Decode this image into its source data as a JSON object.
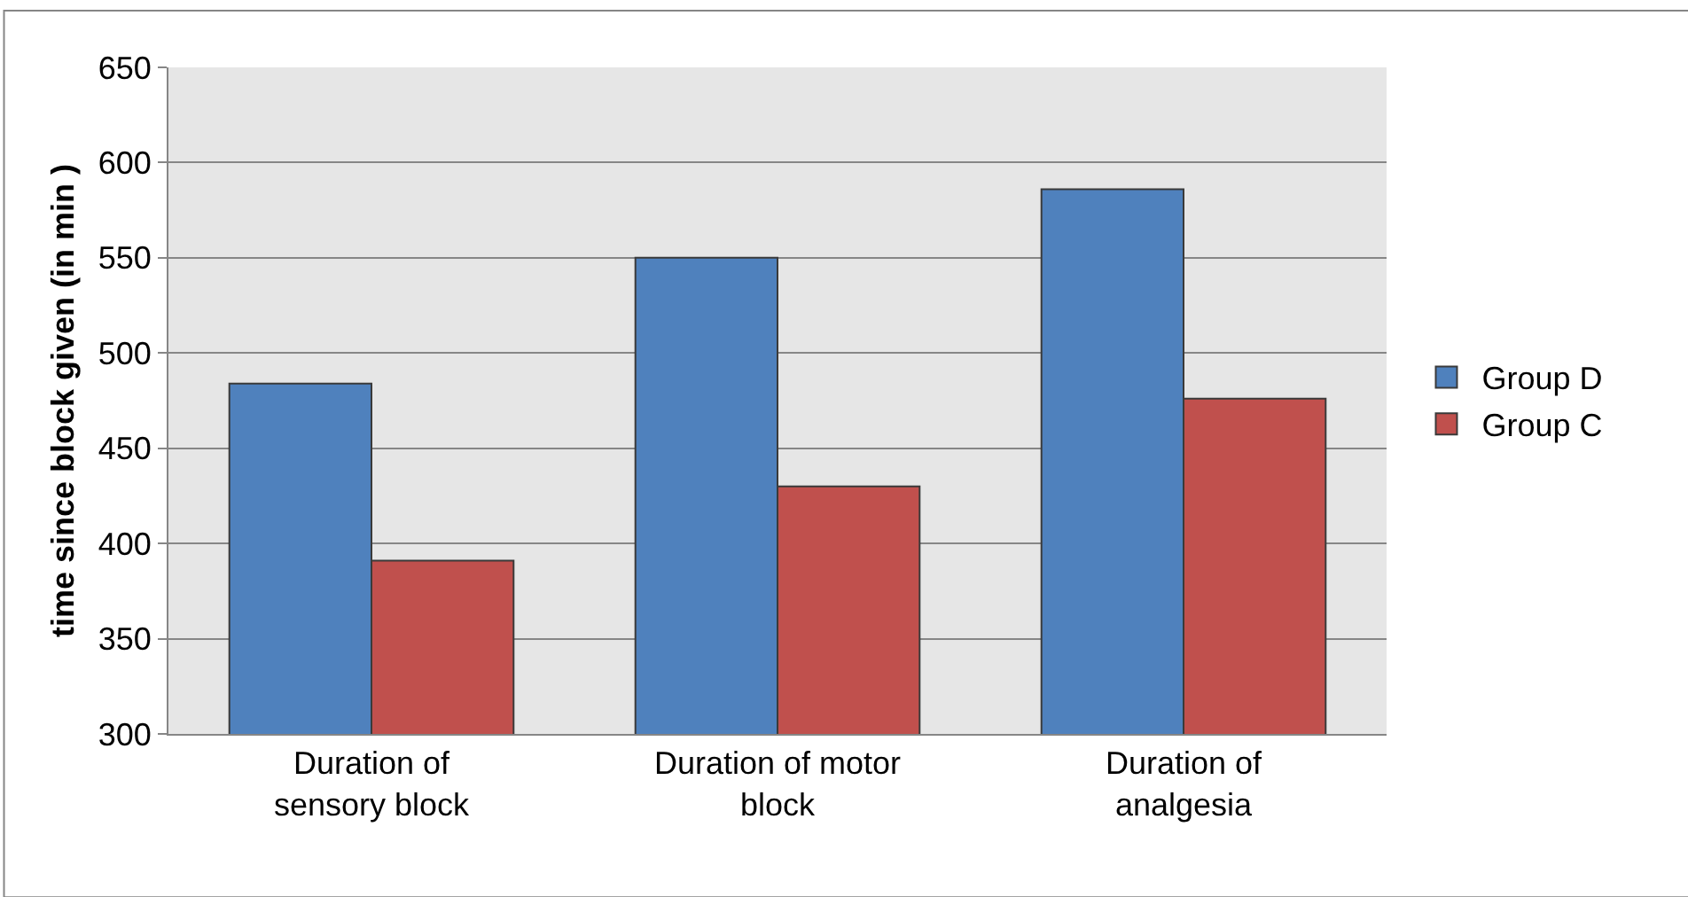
{
  "chart_data": {
    "type": "bar",
    "ylabel": "time since block given (in min )",
    "categories": [
      "Duration of sensory block",
      "Duration of motor block",
      "Duration of analgesia"
    ],
    "series": [
      {
        "name": "Group D",
        "color": "#4f81bd",
        "values": [
          484,
          550,
          586
        ]
      },
      {
        "name": "Group C",
        "color": "#c0504d",
        "values": [
          391,
          430,
          476
        ]
      }
    ],
    "ylim": [
      300,
      650
    ],
    "yticks": [
      300,
      350,
      400,
      450,
      500,
      550,
      600,
      650
    ],
    "grid": "y",
    "legend": "right"
  }
}
